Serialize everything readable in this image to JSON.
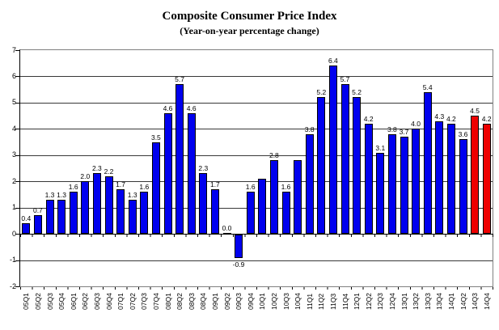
{
  "title": "Composite Consumer Price Index",
  "subtitle": "(Year-on-year percentage change)",
  "colors": {
    "bar_default": "#0000EE",
    "bar_highlight": "#EE0000",
    "bar_border": "#000000",
    "gridline": "#383838",
    "plot_border": "#808080"
  },
  "chart_data": {
    "type": "bar",
    "title": "Composite Consumer Price Index",
    "subtitle": "(Year-on-year percentage change)",
    "xlabel": "",
    "ylabel": "",
    "ylim": [
      -2,
      7
    ],
    "yticks": [
      7,
      6,
      5,
      4,
      3,
      2,
      1,
      0,
      -1,
      -2
    ],
    "grid": true,
    "legend": "none",
    "categories": [
      "05Q1",
      "05Q2",
      "05Q3",
      "05Q4",
      "06Q1",
      "06Q2",
      "06Q3",
      "06Q4",
      "07Q1",
      "07Q2",
      "07Q3",
      "07Q4",
      "08Q1",
      "08Q2",
      "08Q3",
      "08Q4",
      "09Q1",
      "09Q2",
      "09Q3",
      "09Q4",
      "10Q1",
      "10Q2",
      "10Q3",
      "10Q4",
      "11Q1",
      "11Q2",
      "11Q3",
      "11Q4",
      "12Q1",
      "12Q2",
      "12Q3",
      "12Q4",
      "13Q1",
      "13Q2",
      "13Q3",
      "13Q4",
      "14Q1",
      "14Q2",
      "14Q3",
      "14Q4"
    ],
    "values": [
      0.4,
      0.7,
      1.3,
      1.3,
      1.6,
      2.0,
      2.3,
      2.2,
      1.7,
      1.3,
      1.6,
      3.5,
      4.6,
      5.7,
      4.6,
      2.3,
      1.7,
      0.0,
      -0.9,
      1.6,
      2.1,
      2.8,
      1.6,
      2.8,
      3.8,
      5.2,
      6.4,
      5.7,
      5.2,
      4.2,
      3.1,
      3.8,
      3.7,
      4.0,
      5.4,
      4.3,
      4.2,
      3.6,
      4.5,
      4.2
    ],
    "value_labels": [
      "0.4",
      "0.7",
      "1.3",
      "1.3",
      "1.6",
      "2.0",
      "2.3",
      "2.2",
      "1.7",
      "1.3",
      "1.6",
      "3.5",
      "4.6",
      "5.7",
      "4.6",
      "2.3",
      "1.7",
      "0.0",
      "-0.9",
      "1.6",
      "",
      "2.8",
      "1.6",
      "",
      "3.8",
      "5.2",
      "6.4",
      "5.7",
      "5.2",
      "4.2",
      "3.1",
      "3.8",
      "3.7",
      "4.0",
      "5.4",
      "4.3",
      "4.2",
      "3.6",
      "4.5",
      "4.2"
    ],
    "highlighted_categories": [
      "14Q3",
      "14Q4"
    ]
  }
}
